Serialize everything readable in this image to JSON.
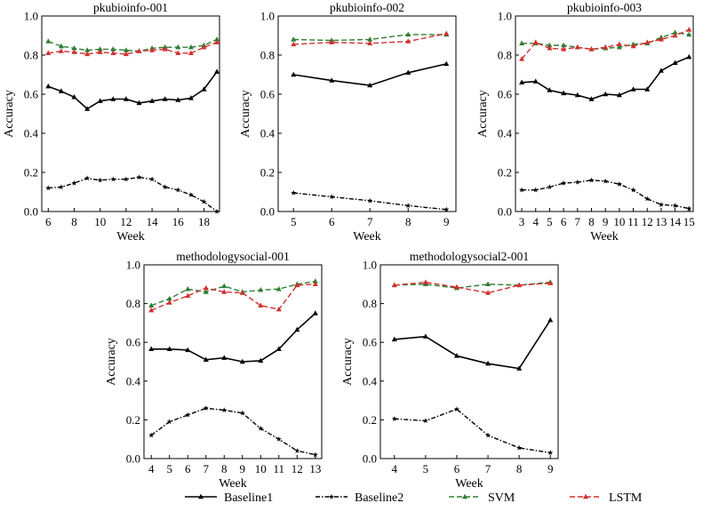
{
  "legend": {
    "placement": "bottom",
    "items": [
      {
        "label": "Baseline1",
        "color": "#000000",
        "dash": "solid",
        "marker": "triangle"
      },
      {
        "label": "Baseline2",
        "color": "#000000",
        "dash": "dashdot",
        "marker": "star"
      },
      {
        "label": "SVM",
        "color": "#2e7d32",
        "dash": "dashed",
        "marker": "triangle"
      },
      {
        "label": "LSTM",
        "color": "#d32f2f",
        "dash": "dashed",
        "marker": "triangle"
      }
    ]
  },
  "chart_data": [
    {
      "type": "line",
      "title": "pkubioinfo-001",
      "xlabel": "Week",
      "ylabel": "Accuracy",
      "xlim": [
        5.5,
        19.2
      ],
      "ylim": [
        0.0,
        1.0
      ],
      "xticks": [
        6,
        8,
        10,
        12,
        14,
        16,
        18
      ],
      "yticks": [
        "0.0",
        "0.2",
        "0.4",
        "0.6",
        "0.8",
        "1.0"
      ],
      "grid": false,
      "x": [
        6,
        7,
        8,
        9,
        10,
        11,
        12,
        13,
        14,
        15,
        16,
        17,
        18,
        19
      ],
      "series": [
        {
          "name": "Baseline1",
          "values": [
            0.64,
            0.615,
            0.585,
            0.525,
            0.565,
            0.575,
            0.575,
            0.555,
            0.565,
            0.575,
            0.57,
            0.58,
            0.625,
            0.715
          ]
        },
        {
          "name": "Baseline2",
          "values": [
            0.12,
            0.125,
            0.145,
            0.17,
            0.16,
            0.165,
            0.165,
            0.175,
            0.165,
            0.125,
            0.11,
            0.085,
            0.05,
            0.0
          ]
        },
        {
          "name": "SVM",
          "values": [
            0.87,
            0.845,
            0.835,
            0.825,
            0.83,
            0.83,
            0.825,
            0.82,
            0.835,
            0.84,
            0.84,
            0.84,
            0.85,
            0.88
          ]
        },
        {
          "name": "LSTM",
          "values": [
            0.81,
            0.82,
            0.815,
            0.805,
            0.815,
            0.81,
            0.805,
            0.82,
            0.825,
            0.83,
            0.81,
            0.81,
            0.84,
            0.865
          ]
        }
      ]
    },
    {
      "type": "line",
      "title": "pkubioinfo-002",
      "xlabel": "Week",
      "ylabel": "Accuracy",
      "xlim": [
        4.6,
        9.25
      ],
      "ylim": [
        0.0,
        1.0
      ],
      "xticks": [
        5,
        6,
        7,
        8,
        9
      ],
      "yticks": [
        "0.0",
        "0.2",
        "0.4",
        "0.6",
        "0.8",
        "1.0"
      ],
      "grid": false,
      "x": [
        5,
        6,
        7,
        8,
        9
      ],
      "series": [
        {
          "name": "Baseline1",
          "values": [
            0.7,
            0.67,
            0.645,
            0.71,
            0.755
          ]
        },
        {
          "name": "Baseline2",
          "values": [
            0.095,
            0.075,
            0.055,
            0.03,
            0.01
          ]
        },
        {
          "name": "SVM",
          "values": [
            0.88,
            0.875,
            0.88,
            0.905,
            0.905
          ]
        },
        {
          "name": "LSTM",
          "values": [
            0.855,
            0.865,
            0.86,
            0.87,
            0.91
          ]
        }
      ]
    },
    {
      "type": "line",
      "title": "pkubioinfo-003",
      "xlabel": "Week",
      "ylabel": "Accuracy",
      "xlim": [
        2.55,
        15.3
      ],
      "ylim": [
        0.0,
        1.0
      ],
      "xticks": [
        3,
        4,
        5,
        6,
        7,
        8,
        9,
        10,
        11,
        12,
        13,
        14,
        15
      ],
      "yticks": [
        "0.0",
        "0.2",
        "0.4",
        "0.6",
        "0.8",
        "1.0"
      ],
      "grid": false,
      "x": [
        3,
        4,
        5,
        6,
        7,
        8,
        9,
        10,
        11,
        12,
        13,
        14,
        15
      ],
      "series": [
        {
          "name": "Baseline1",
          "values": [
            0.66,
            0.665,
            0.62,
            0.605,
            0.595,
            0.575,
            0.6,
            0.595,
            0.625,
            0.625,
            0.72,
            0.76,
            0.79
          ]
        },
        {
          "name": "Baseline2",
          "values": [
            0.11,
            0.11,
            0.125,
            0.145,
            0.15,
            0.16,
            0.155,
            0.14,
            0.11,
            0.065,
            0.035,
            0.03,
            0.015
          ]
        },
        {
          "name": "SVM",
          "values": [
            0.86,
            0.86,
            0.85,
            0.85,
            0.84,
            0.83,
            0.835,
            0.84,
            0.855,
            0.86,
            0.89,
            0.915,
            0.905
          ]
        },
        {
          "name": "LSTM",
          "values": [
            0.78,
            0.865,
            0.835,
            0.83,
            0.84,
            0.83,
            0.84,
            0.855,
            0.845,
            0.865,
            0.88,
            0.9,
            0.93
          ]
        }
      ]
    },
    {
      "type": "line",
      "title": "methodologysocial-001",
      "xlabel": "Week",
      "ylabel": "Accuracy",
      "xlim": [
        3.6,
        13.35
      ],
      "ylim": [
        0.0,
        1.0
      ],
      "xticks": [
        4,
        5,
        6,
        7,
        8,
        9,
        10,
        11,
        12,
        13
      ],
      "yticks": [
        "0.0",
        "0.2",
        "0.4",
        "0.6",
        "0.8",
        "1.0"
      ],
      "grid": false,
      "x": [
        4,
        5,
        6,
        7,
        8,
        9,
        10,
        11,
        12,
        13
      ],
      "series": [
        {
          "name": "Baseline1",
          "values": [
            0.565,
            0.565,
            0.56,
            0.51,
            0.52,
            0.5,
            0.505,
            0.565,
            0.665,
            0.75
          ]
        },
        {
          "name": "Baseline2",
          "values": [
            0.12,
            0.19,
            0.225,
            0.26,
            0.25,
            0.235,
            0.155,
            0.1,
            0.04,
            0.02
          ]
        },
        {
          "name": "SVM",
          "values": [
            0.79,
            0.825,
            0.875,
            0.86,
            0.89,
            0.86,
            0.87,
            0.875,
            0.9,
            0.915
          ]
        },
        {
          "name": "LSTM",
          "values": [
            0.765,
            0.805,
            0.84,
            0.88,
            0.86,
            0.855,
            0.79,
            0.77,
            0.895,
            0.9
          ]
        }
      ]
    },
    {
      "type": "line",
      "title": "methodologysocial2-001",
      "xlabel": "Week",
      "ylabel": "Accuracy",
      "xlim": [
        3.55,
        9.25
      ],
      "ylim": [
        0.0,
        1.0
      ],
      "xticks": [
        4,
        5,
        6,
        7,
        8,
        9
      ],
      "yticks": [
        "0.0",
        "0.2",
        "0.4",
        "0.6",
        "0.8",
        "1.0"
      ],
      "grid": false,
      "x": [
        4,
        5,
        6,
        7,
        8,
        9
      ],
      "series": [
        {
          "name": "Baseline1",
          "values": [
            0.615,
            0.63,
            0.53,
            0.49,
            0.465,
            0.715
          ]
        },
        {
          "name": "Baseline2",
          "values": [
            0.205,
            0.195,
            0.255,
            0.12,
            0.055,
            0.03
          ]
        },
        {
          "name": "SVM",
          "values": [
            0.895,
            0.9,
            0.88,
            0.9,
            0.895,
            0.91
          ]
        },
        {
          "name": "LSTM",
          "values": [
            0.895,
            0.91,
            0.885,
            0.855,
            0.895,
            0.905
          ]
        }
      ]
    }
  ]
}
